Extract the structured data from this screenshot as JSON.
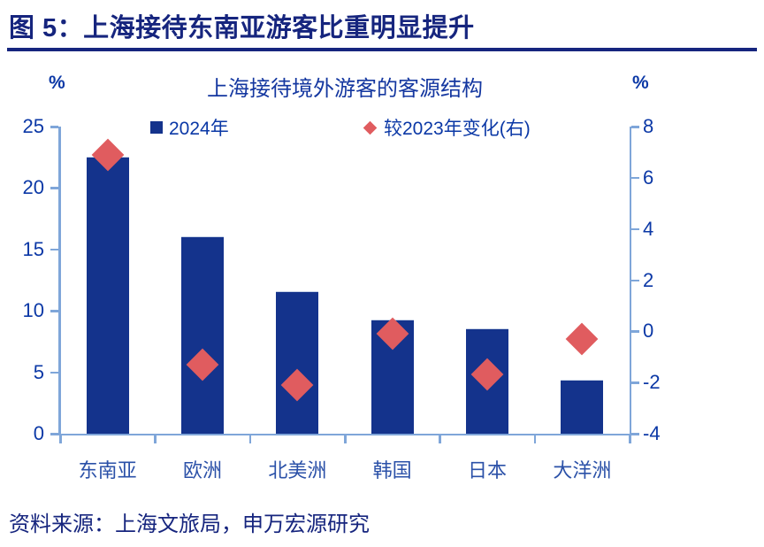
{
  "header": {
    "title": "图 5：上海接待东南亚游客比重明显提升"
  },
  "chart_data": {
    "type": "bar",
    "title": "上海接待境外游客的客源结构",
    "categories": [
      "东南亚",
      "欧洲",
      "北美洲",
      "韩国",
      "日本",
      "大洋洲"
    ],
    "series": [
      {
        "name": "2024年",
        "type": "bar",
        "axis": "left",
        "values": [
          22.5,
          16.0,
          11.5,
          9.2,
          8.5,
          4.3
        ]
      },
      {
        "name": "较2023年变化(右)",
        "type": "scatter",
        "axis": "right",
        "values": [
          6.9,
          -1.3,
          -2.1,
          -0.1,
          -1.7,
          -0.3
        ]
      }
    ],
    "left_axis": {
      "unit": "%",
      "min": 0,
      "max": 25,
      "ticks": [
        0,
        5,
        10,
        15,
        20,
        25
      ]
    },
    "right_axis": {
      "unit": "%",
      "min": -4,
      "max": 8,
      "ticks": [
        8,
        6,
        4,
        2,
        0,
        -2,
        -4
      ]
    },
    "legend_position": "top",
    "grid": false,
    "colors": {
      "bar": "#14338C",
      "marker": "#E05C5F",
      "axis_line": "#7FA6D9",
      "tick_text": "#0B38A6",
      "category_text": "#2B51A8",
      "title_text": "#1437A0",
      "header_text": "#16257E"
    }
  },
  "footer": {
    "source": "资料来源：上海文旅局，申万宏源研究"
  }
}
